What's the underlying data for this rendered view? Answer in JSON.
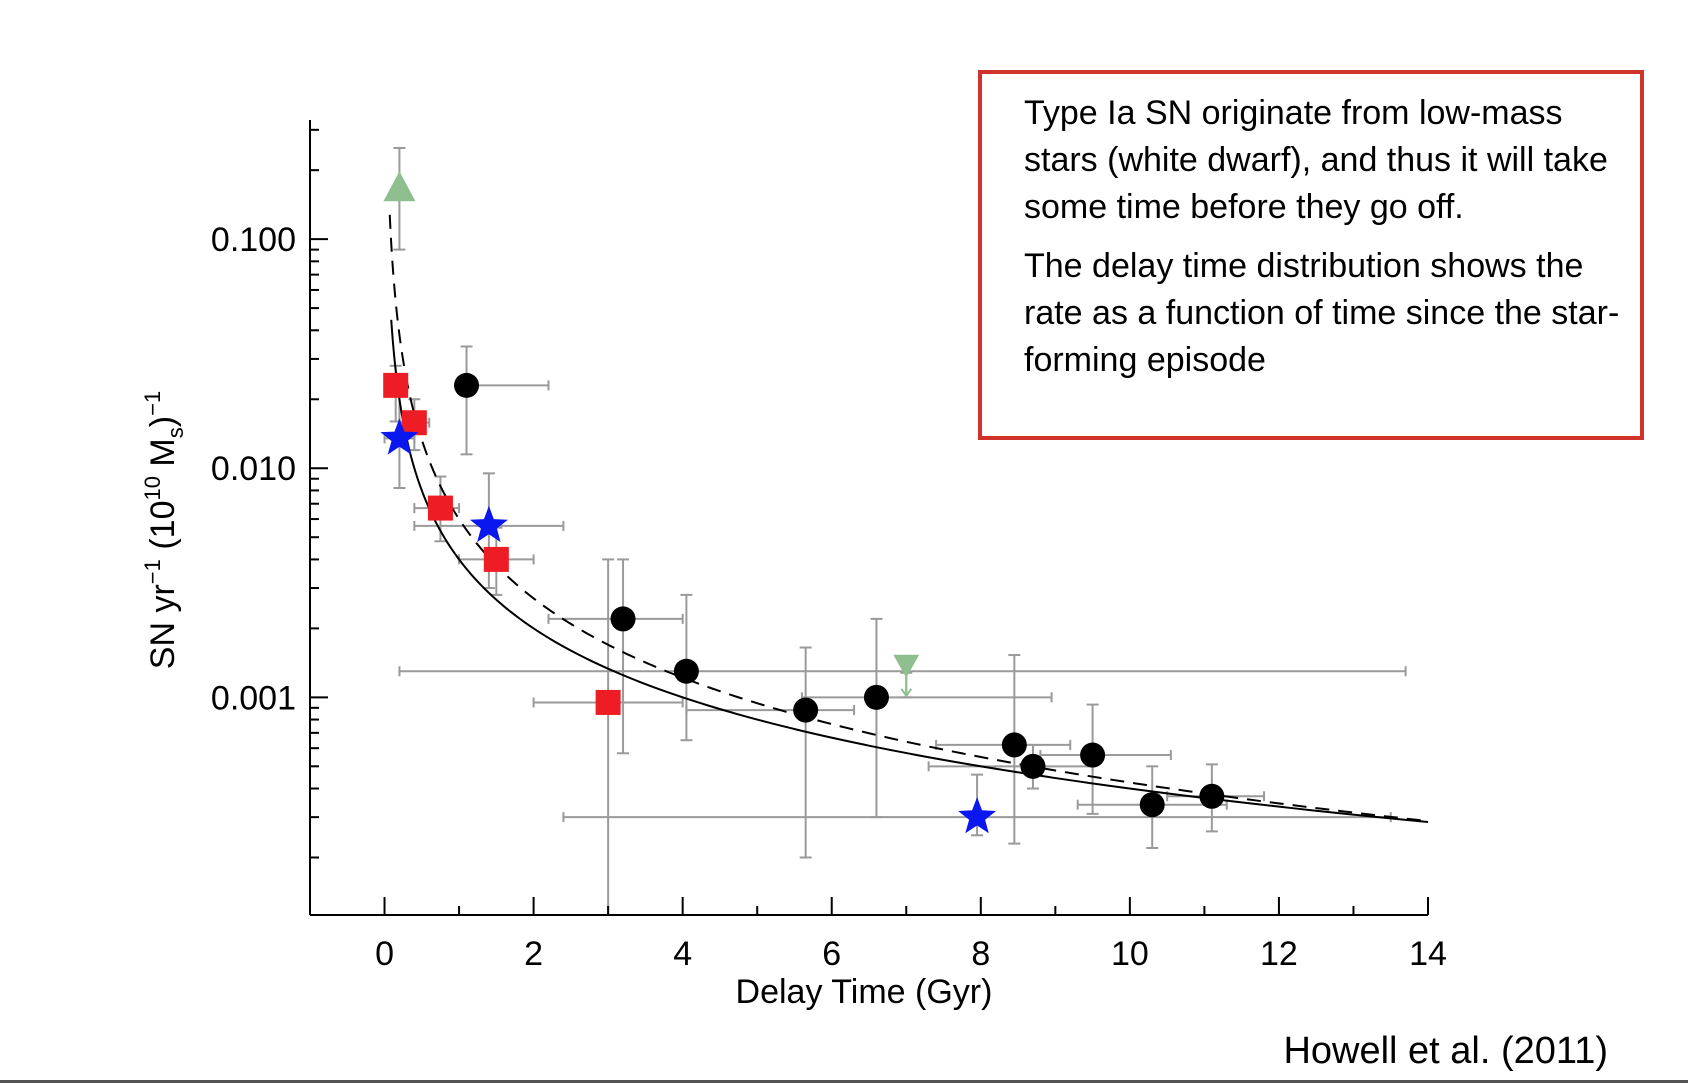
{
  "chart_data": {
    "type": "scatter",
    "xlabel": "Delay Time (Gyr)",
    "ylabel_parts": {
      "a": "SN yr",
      "b": "−1",
      "c": " (10",
      "d": "10",
      "e": " M",
      "f": "s",
      "g": ")",
      "h": "−1"
    },
    "xlim": [
      -1,
      14
    ],
    "ylim_log10": [
      -3.95,
      -0.48
    ],
    "log_y": true,
    "x_ticks": [
      0,
      2,
      4,
      6,
      8,
      10,
      12,
      14
    ],
    "x_tick_labels": [
      "0",
      "2",
      "4",
      "6",
      "8",
      "10",
      "12",
      "14"
    ],
    "y_ticks": [
      0.001,
      0.01,
      0.1
    ],
    "y_tick_labels": [
      "0.001",
      "0.010",
      "0.100"
    ],
    "grid": false,
    "series": [
      {
        "marker": "circle",
        "color": "#000000",
        "points": [
          {
            "x": 1.1,
            "y": 0.023,
            "xerr": [
              1.1,
              2.2
            ],
            "yerr": [
              0.0115,
              0.034
            ]
          },
          {
            "x": 3.2,
            "y": 0.0022,
            "xerr": [
              2.2,
              4.0
            ],
            "yerr": [
              0.00057,
              0.004
            ]
          },
          {
            "x": 4.05,
            "y": 0.0013,
            "xerr": [
              0.2,
              13.7
            ],
            "yerr": [
              0.00065,
              0.0028
            ]
          },
          {
            "x": 5.65,
            "y": 0.00088,
            "xerr": [
              4.05,
              6.3
            ],
            "yerr": [
              0.0002,
              0.00165
            ]
          },
          {
            "x": 6.6,
            "y": 0.001,
            "xerr": [
              5.6,
              8.95
            ],
            "yerr": [
              0.0003,
              0.0022
            ]
          },
          {
            "x": 8.45,
            "y": 0.00062,
            "xerr": [
              7.4,
              9.2
            ],
            "yerr": [
              0.00023,
              0.00153
            ]
          },
          {
            "x": 8.7,
            "y": 0.0005,
            "xerr": [
              7.3,
              9.5
            ],
            "yerr": [
              0.0004,
              0.00062
            ]
          },
          {
            "x": 9.5,
            "y": 0.00056,
            "xerr": [
              8.8,
              10.55
            ],
            "yerr": [
              0.00031,
              0.00093
            ]
          },
          {
            "x": 10.3,
            "y": 0.00034,
            "xerr": [
              9.3,
              11.3
            ],
            "yerr": [
              0.00022,
              0.0005
            ]
          },
          {
            "x": 11.1,
            "y": 0.00037,
            "xerr": [
              10.5,
              11.8
            ],
            "yerr": [
              0.00026,
              0.00051
            ]
          }
        ]
      },
      {
        "marker": "square",
        "color": "#ee1c24",
        "points": [
          {
            "x": 0.15,
            "y": 0.023,
            "xerr": [
              0.0,
              0.3
            ],
            "yerr": [
              0.016,
              0.028
            ]
          },
          {
            "x": 0.4,
            "y": 0.0158,
            "xerr": [
              0.2,
              0.6
            ],
            "yerr": [
              0.012,
              0.02
            ]
          },
          {
            "x": 0.75,
            "y": 0.0067,
            "xerr": [
              0.4,
              1.0
            ],
            "yerr": [
              0.0048,
              0.0092
            ]
          },
          {
            "x": 1.5,
            "y": 0.004,
            "xerr": [
              1.0,
              2.0
            ],
            "yerr": [
              0.0028,
              0.0055
            ]
          },
          {
            "x": 3.0,
            "y": 0.00095,
            "xerr": [
              2.0,
              4.0
            ],
            "yerr": [
              1e-05,
              0.004
            ]
          }
        ]
      },
      {
        "marker": "star",
        "color": "#0a17ee",
        "points": [
          {
            "x": 0.2,
            "y": 0.0135,
            "xerr": [
              0.0,
              0.4
            ],
            "yerr": [
              0.0082,
              0.021
            ]
          },
          {
            "x": 1.4,
            "y": 0.0056,
            "xerr": [
              0.4,
              2.4
            ],
            "yerr": [
              0.003,
              0.0095
            ]
          },
          {
            "x": 7.95,
            "y": 0.0003,
            "xerr": [
              2.4,
              13.5
            ],
            "yerr": [
              0.00025,
              0.00046
            ]
          }
        ]
      },
      {
        "marker": "triangle-up",
        "color": "#8fbf8f",
        "points": [
          {
            "x": 0.2,
            "y": 0.165,
            "xerr": [
              0.2,
              0.2
            ],
            "yerr": [
              0.09,
              0.25
            ]
          }
        ]
      },
      {
        "marker": "triangle-down",
        "color": "#8fbf8f",
        "points": [
          {
            "x": 7.0,
            "y": 0.00128,
            "xerr": [
              7.0,
              7.0
            ],
            "yerr": [
              0.001,
              0.00128
            ]
          }
        ]
      }
    ],
    "curves": [
      {
        "style": "solid",
        "color": "#000000",
        "coef": 0.004,
        "power": -1.0,
        "t_min": 0.09,
        "t_max": 14.0
      },
      {
        "style": "dashed",
        "color": "#000000",
        "coef": 0.006,
        "power": -1.15,
        "t_min": 0.07,
        "t_max": 14.0
      }
    ]
  },
  "note": {
    "paragraph_1": "Type Ia SN originate from low-mass stars (white dwarf), and thus it will take some time before they go off.",
    "paragraph_2": "The delay time distribution shows the rate as a function of time since the star-forming episode",
    "border_color": "#d1332b"
  },
  "citation": "Howell et al. (2011)"
}
